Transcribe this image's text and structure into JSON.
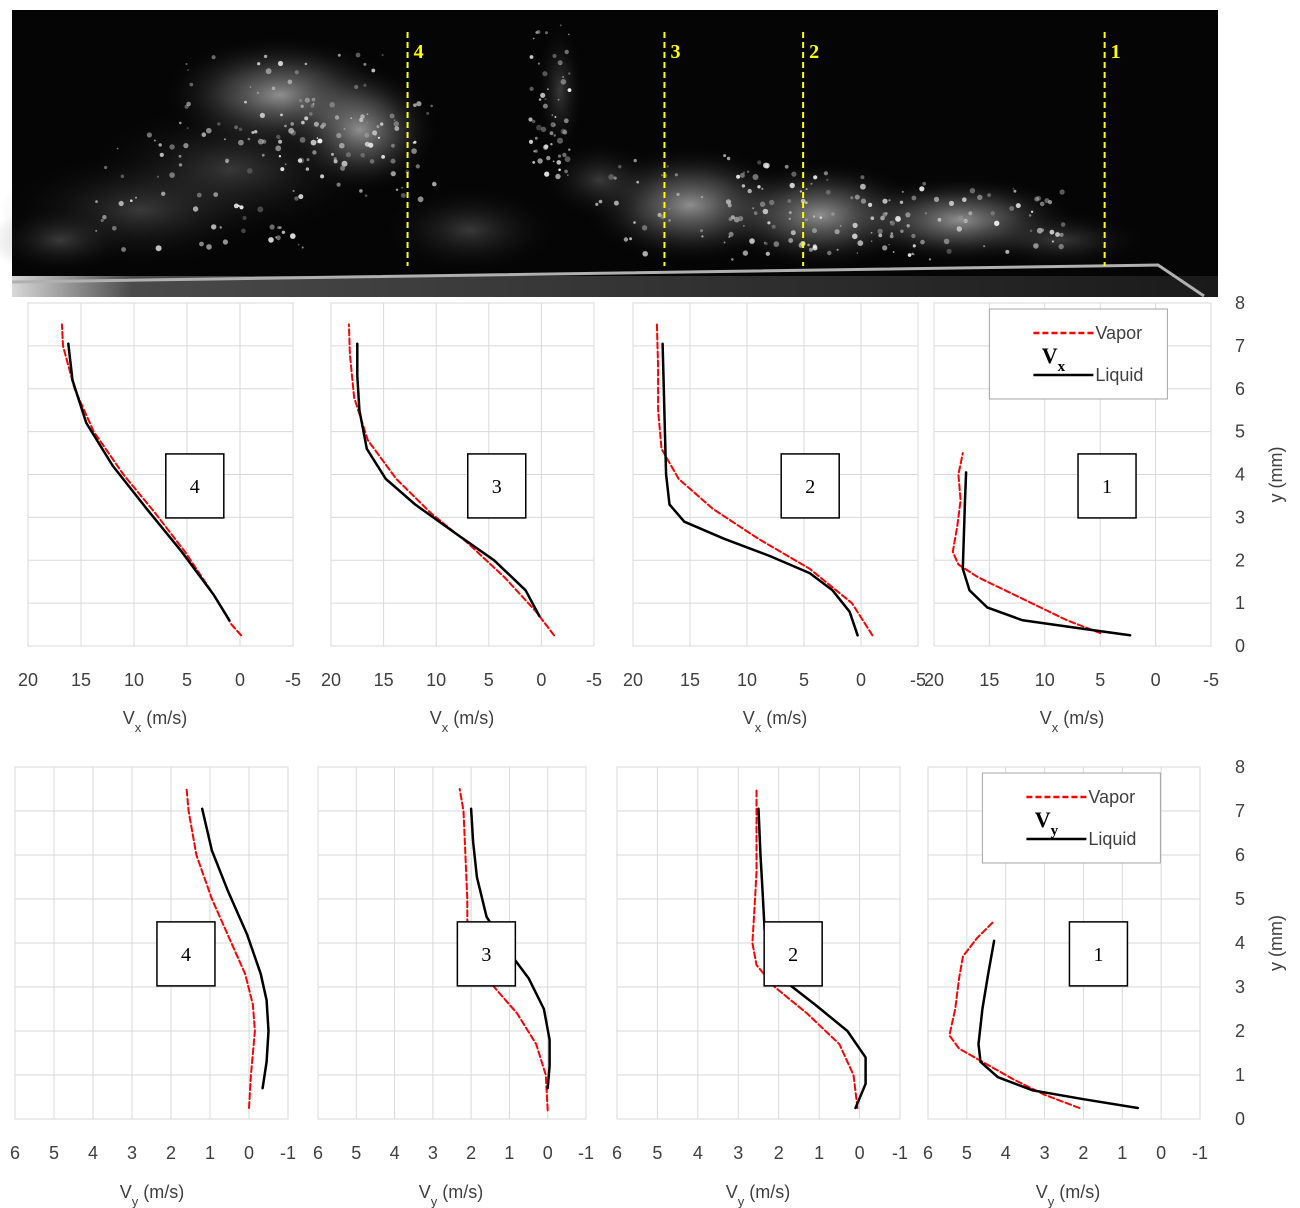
{
  "image_strip": {
    "stations": [
      {
        "label": "4",
        "x_fraction": 0.328
      },
      {
        "label": "3",
        "x_fraction": 0.541
      },
      {
        "label": "2",
        "x_fraction": 0.656
      },
      {
        "label": "1",
        "x_fraction": 0.906
      }
    ],
    "station_line_color": "#ffff00",
    "wall_color": "#b0b0b0"
  },
  "colors": {
    "vapor": "#ff0000",
    "liquid": "#000000",
    "grid": "#d9d9d9",
    "text": "#404040"
  },
  "chart_data": [
    {
      "type": "line",
      "row": "Vx",
      "station": "4",
      "box_label": "4",
      "xlim": [
        20,
        -5
      ],
      "ylim": [
        0,
        8
      ],
      "x_reversed": true,
      "xticks": [
        "20",
        "15",
        "10",
        "5",
        "0",
        "-5"
      ],
      "xlabel_main": "V",
      "xlabel_sub": "x",
      "xlabel_unit": " (m/s)",
      "series": [
        {
          "name": "Vapor",
          "style": "dashed",
          "points": [
            [
              -0.1,
              0.25
            ],
            [
              0.8,
              0.5
            ],
            [
              2.5,
              1.2
            ],
            [
              5.2,
              2.2
            ],
            [
              8,
              3.1
            ],
            [
              11,
              4.0
            ],
            [
              13.8,
              5.0
            ],
            [
              15.6,
              6.0
            ],
            [
              16.7,
              7.0
            ],
            [
              16.8,
              7.5
            ]
          ]
        },
        {
          "name": "Liquid",
          "style": "solid",
          "points": [
            [
              1,
              0.6
            ],
            [
              2.5,
              1.2
            ],
            [
              5.5,
              2.2
            ],
            [
              8.8,
              3.2
            ],
            [
              12,
              4.2
            ],
            [
              14.5,
              5.2
            ],
            [
              15.8,
              6.2
            ],
            [
              16.2,
              7.05
            ]
          ]
        }
      ]
    },
    {
      "type": "line",
      "row": "Vx",
      "station": "3",
      "box_label": "3",
      "xlim": [
        20,
        -5
      ],
      "ylim": [
        0,
        8
      ],
      "x_reversed": true,
      "xticks": [
        "20",
        "15",
        "10",
        "5",
        "0",
        "-5"
      ],
      "xlabel_main": "V",
      "xlabel_sub": "x",
      "xlabel_unit": " (m/s)",
      "series": [
        {
          "name": "Vapor",
          "style": "dashed",
          "points": [
            [
              -1.2,
              0.25
            ],
            [
              0.5,
              0.8
            ],
            [
              3.5,
              1.6
            ],
            [
              7,
              2.4
            ],
            [
              10.5,
              3.1
            ],
            [
              13.8,
              3.9
            ],
            [
              16.5,
              4.8
            ],
            [
              17.8,
              5.8
            ],
            [
              18.2,
              6.8
            ],
            [
              18.3,
              7.5
            ]
          ]
        },
        {
          "name": "Liquid",
          "style": "solid",
          "points": [
            [
              0.2,
              0.7
            ],
            [
              1.5,
              1.3
            ],
            [
              4.5,
              2.0
            ],
            [
              8,
              2.6
            ],
            [
              12,
              3.3
            ],
            [
              14.8,
              3.9
            ],
            [
              16.6,
              4.6
            ],
            [
              17.3,
              5.5
            ],
            [
              17.5,
              6.3
            ],
            [
              17.5,
              7.05
            ]
          ]
        }
      ]
    },
    {
      "type": "line",
      "row": "Vx",
      "station": "2",
      "box_label": "2",
      "xlim": [
        20,
        -5
      ],
      "ylim": [
        0,
        8
      ],
      "x_reversed": true,
      "xticks": [
        "20",
        "15",
        "10",
        "5",
        "0",
        "-5"
      ],
      "xlabel_main": "V",
      "xlabel_sub": "x",
      "xlabel_unit": " (m/s)",
      "series": [
        {
          "name": "Vapor",
          "style": "dashed",
          "points": [
            [
              -1,
              0.25
            ],
            [
              0.8,
              1.0
            ],
            [
              4.5,
              1.8
            ],
            [
              9,
              2.5
            ],
            [
              13,
              3.2
            ],
            [
              16,
              3.9
            ],
            [
              17.5,
              4.6
            ],
            [
              17.8,
              5.5
            ],
            [
              17.8,
              6.5
            ],
            [
              17.9,
              7.5
            ]
          ]
        },
        {
          "name": "Liquid",
          "style": "solid",
          "points": [
            [
              0.3,
              0.25
            ],
            [
              1,
              0.8
            ],
            [
              2.5,
              1.3
            ],
            [
              4.5,
              1.7
            ],
            [
              8,
              2.1
            ],
            [
              12,
              2.5
            ],
            [
              15.5,
              2.9
            ],
            [
              16.8,
              3.3
            ],
            [
              17.1,
              4.0
            ],
            [
              17.2,
              5.0
            ],
            [
              17.3,
              6.0
            ],
            [
              17.4,
              7.05
            ]
          ]
        }
      ]
    },
    {
      "type": "line",
      "row": "Vx",
      "station": "1",
      "box_label": "1",
      "xlim": [
        20,
        -5
      ],
      "ylim": [
        0,
        8
      ],
      "x_reversed": true,
      "xticks": [
        "20",
        "15",
        "10",
        "5",
        "0",
        "-5"
      ],
      "xlabel_main": "V",
      "xlabel_sub": "x",
      "xlabel_unit": " (m/s)",
      "legend": {
        "title_main": "V",
        "title_sub": "x",
        "entries": [
          "Vapor",
          "Liquid"
        ]
      },
      "series": [
        {
          "name": "Vapor",
          "style": "dashed",
          "points": [
            [
              5,
              0.3
            ],
            [
              8,
              0.6
            ],
            [
              12,
              1.1
            ],
            [
              16,
              1.6
            ],
            [
              17.8,
              1.9
            ],
            [
              18.3,
              2.2
            ],
            [
              17.9,
              2.8
            ],
            [
              17.6,
              3.4
            ],
            [
              17.8,
              4.0
            ],
            [
              17.4,
              4.5
            ]
          ]
        },
        {
          "name": "Liquid",
          "style": "solid",
          "points": [
            [
              2.3,
              0.25
            ],
            [
              6.5,
              0.4
            ],
            [
              12,
              0.6
            ],
            [
              15.2,
              0.9
            ],
            [
              16.8,
              1.3
            ],
            [
              17.4,
              1.8
            ],
            [
              17.3,
              2.6
            ],
            [
              17.2,
              3.4
            ],
            [
              17.1,
              4.05
            ]
          ]
        }
      ]
    },
    {
      "type": "line",
      "row": "Vy",
      "station": "4",
      "box_label": "4",
      "xlim": [
        6,
        -1
      ],
      "ylim": [
        0,
        8
      ],
      "x_reversed": true,
      "xticks": [
        "6",
        "5",
        "4",
        "3",
        "2",
        "1",
        "0",
        "-1"
      ],
      "xlabel_main": "V",
      "xlabel_sub": "y",
      "xlabel_unit": " (m/s)",
      "series": [
        {
          "name": "Vapor",
          "style": "dashed",
          "points": [
            [
              0,
              0.25
            ],
            [
              -0.05,
              1.0
            ],
            [
              -0.15,
              2.0
            ],
            [
              -0.1,
              2.6
            ],
            [
              0.1,
              3.3
            ],
            [
              0.45,
              4.0
            ],
            [
              0.95,
              5.0
            ],
            [
              1.35,
              6.0
            ],
            [
              1.55,
              7.0
            ],
            [
              1.6,
              7.5
            ]
          ]
        },
        {
          "name": "Liquid",
          "style": "solid",
          "points": [
            [
              -0.35,
              0.7
            ],
            [
              -0.45,
              1.3
            ],
            [
              -0.5,
              2.0
            ],
            [
              -0.45,
              2.7
            ],
            [
              -0.3,
              3.3
            ],
            [
              0.05,
              4.2
            ],
            [
              0.55,
              5.2
            ],
            [
              0.95,
              6.1
            ],
            [
              1.2,
              7.05
            ]
          ]
        }
      ]
    },
    {
      "type": "line",
      "row": "Vy",
      "station": "3",
      "box_label": "3",
      "xlim": [
        6,
        -1
      ],
      "ylim": [
        0,
        8
      ],
      "x_reversed": true,
      "xticks": [
        "6",
        "5",
        "4",
        "3",
        "2",
        "1",
        "0",
        "-1"
      ],
      "xlabel_main": "V",
      "xlabel_sub": "y",
      "xlabel_unit": " (m/s)",
      "series": [
        {
          "name": "Vapor",
          "style": "dashed",
          "points": [
            [
              0,
              0.2
            ],
            [
              0.05,
              1.0
            ],
            [
              0.3,
              1.7
            ],
            [
              0.8,
              2.4
            ],
            [
              1.4,
              3.0
            ],
            [
              1.9,
              3.7
            ],
            [
              2.1,
              4.3
            ],
            [
              2.1,
              5.0
            ],
            [
              2.15,
              6.0
            ],
            [
              2.2,
              7.0
            ],
            [
              2.3,
              7.5
            ]
          ]
        },
        {
          "name": "Liquid",
          "style": "solid",
          "points": [
            [
              0,
              0.7
            ],
            [
              -0.05,
              1.2
            ],
            [
              -0.05,
              1.8
            ],
            [
              0.1,
              2.5
            ],
            [
              0.5,
              3.2
            ],
            [
              1.1,
              3.9
            ],
            [
              1.6,
              4.6
            ],
            [
              1.85,
              5.5
            ],
            [
              1.95,
              6.3
            ],
            [
              2.0,
              7.05
            ]
          ]
        }
      ]
    },
    {
      "type": "line",
      "row": "Vy",
      "station": "2",
      "box_label": "2",
      "xlim": [
        6,
        -1
      ],
      "ylim": [
        0,
        8
      ],
      "x_reversed": true,
      "xticks": [
        "6",
        "5",
        "4",
        "3",
        "2",
        "1",
        "0",
        "-1"
      ],
      "xlabel_main": "V",
      "xlabel_sub": "y",
      "xlabel_unit": " (m/s)",
      "series": [
        {
          "name": "Vapor",
          "style": "dashed",
          "points": [
            [
              0.05,
              0.25
            ],
            [
              0.15,
              1.0
            ],
            [
              0.5,
              1.7
            ],
            [
              1.3,
              2.4
            ],
            [
              2.1,
              3.0
            ],
            [
              2.55,
              3.5
            ],
            [
              2.65,
              4.0
            ],
            [
              2.6,
              4.8
            ],
            [
              2.55,
              5.6
            ],
            [
              2.55,
              6.5
            ],
            [
              2.55,
              7.5
            ]
          ]
        },
        {
          "name": "Liquid",
          "style": "solid",
          "points": [
            [
              0.1,
              0.25
            ],
            [
              -0.15,
              0.8
            ],
            [
              -0.15,
              1.4
            ],
            [
              0.3,
              2.0
            ],
            [
              1.1,
              2.6
            ],
            [
              1.8,
              3.1
            ],
            [
              2.2,
              3.7
            ],
            [
              2.35,
              4.3
            ],
            [
              2.4,
              5.2
            ],
            [
              2.45,
              6.0
            ],
            [
              2.5,
              7.05
            ]
          ]
        }
      ]
    },
    {
      "type": "line",
      "row": "Vy",
      "station": "1",
      "box_label": "1",
      "xlim": [
        6,
        -1
      ],
      "ylim": [
        0,
        8
      ],
      "x_reversed": true,
      "xticks": [
        "6",
        "5",
        "4",
        "3",
        "2",
        "1",
        "0",
        "-1"
      ],
      "xlabel_main": "V",
      "xlabel_sub": "y",
      "xlabel_unit": " (m/s)",
      "legend": {
        "title_main": "V",
        "title_sub": "y",
        "entries": [
          "Vapor",
          "Liquid"
        ]
      },
      "series": [
        {
          "name": "Vapor",
          "style": "dashed",
          "points": [
            [
              2.1,
              0.25
            ],
            [
              3,
              0.55
            ],
            [
              3.8,
              0.9
            ],
            [
              4.6,
              1.3
            ],
            [
              5.2,
              1.6
            ],
            [
              5.45,
              1.9
            ],
            [
              5.3,
              2.5
            ],
            [
              5.2,
              3.2
            ],
            [
              5.1,
              3.7
            ],
            [
              4.75,
              4.1
            ],
            [
              4.3,
              4.5
            ]
          ]
        },
        {
          "name": "Liquid",
          "style": "solid",
          "points": [
            [
              0.6,
              0.25
            ],
            [
              2,
              0.45
            ],
            [
              3.3,
              0.65
            ],
            [
              4.2,
              0.95
            ],
            [
              4.65,
              1.3
            ],
            [
              4.7,
              1.7
            ],
            [
              4.6,
              2.5
            ],
            [
              4.45,
              3.3
            ],
            [
              4.3,
              4.05
            ]
          ]
        }
      ]
    }
  ],
  "y_axes": [
    {
      "row": "Vx",
      "ylim": [
        0,
        8
      ],
      "yticks": [
        "0",
        "1",
        "2",
        "3",
        "4",
        "5",
        "6",
        "7",
        "8"
      ],
      "ylabel": "y (mm)"
    },
    {
      "row": "Vy",
      "ylim": [
        0,
        8
      ],
      "yticks": [
        "0",
        "1",
        "2",
        "3",
        "4",
        "5",
        "6",
        "7",
        "8"
      ],
      "ylabel": "y (mm)"
    }
  ]
}
